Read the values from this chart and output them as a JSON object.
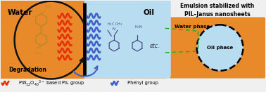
{
  "fig_width": 3.78,
  "fig_height": 1.31,
  "dpi": 100,
  "bg_color": "#f0f0f0",
  "orange_color": "#E88A2A",
  "light_blue_color": "#B8DCF0",
  "title_text": "Emulsion stabilized with\nPIL–Janus nanosheets",
  "water_label": "Water",
  "oil_label": "Oil",
  "degradation_label": "Degradation",
  "water_phase_label": "Water phase",
  "oil_phase_label": "Oil phase",
  "legend_red_label": " PW",
  "legend_red_label2": "12",
  "legend_red_label3": "O",
  "legend_red_label4": "40",
  "legend_red_label5": "3−",
  "legend_red_label6": " based PIL group",
  "legend_blue_label": " Phenyl group",
  "red_wave_color": "#E83010",
  "blue_wave_color": "#4060C8",
  "dye_color": "#B8882A",
  "arrow_color": "#111111",
  "green_dashed_color": "#22AA22",
  "black_color": "#111111"
}
